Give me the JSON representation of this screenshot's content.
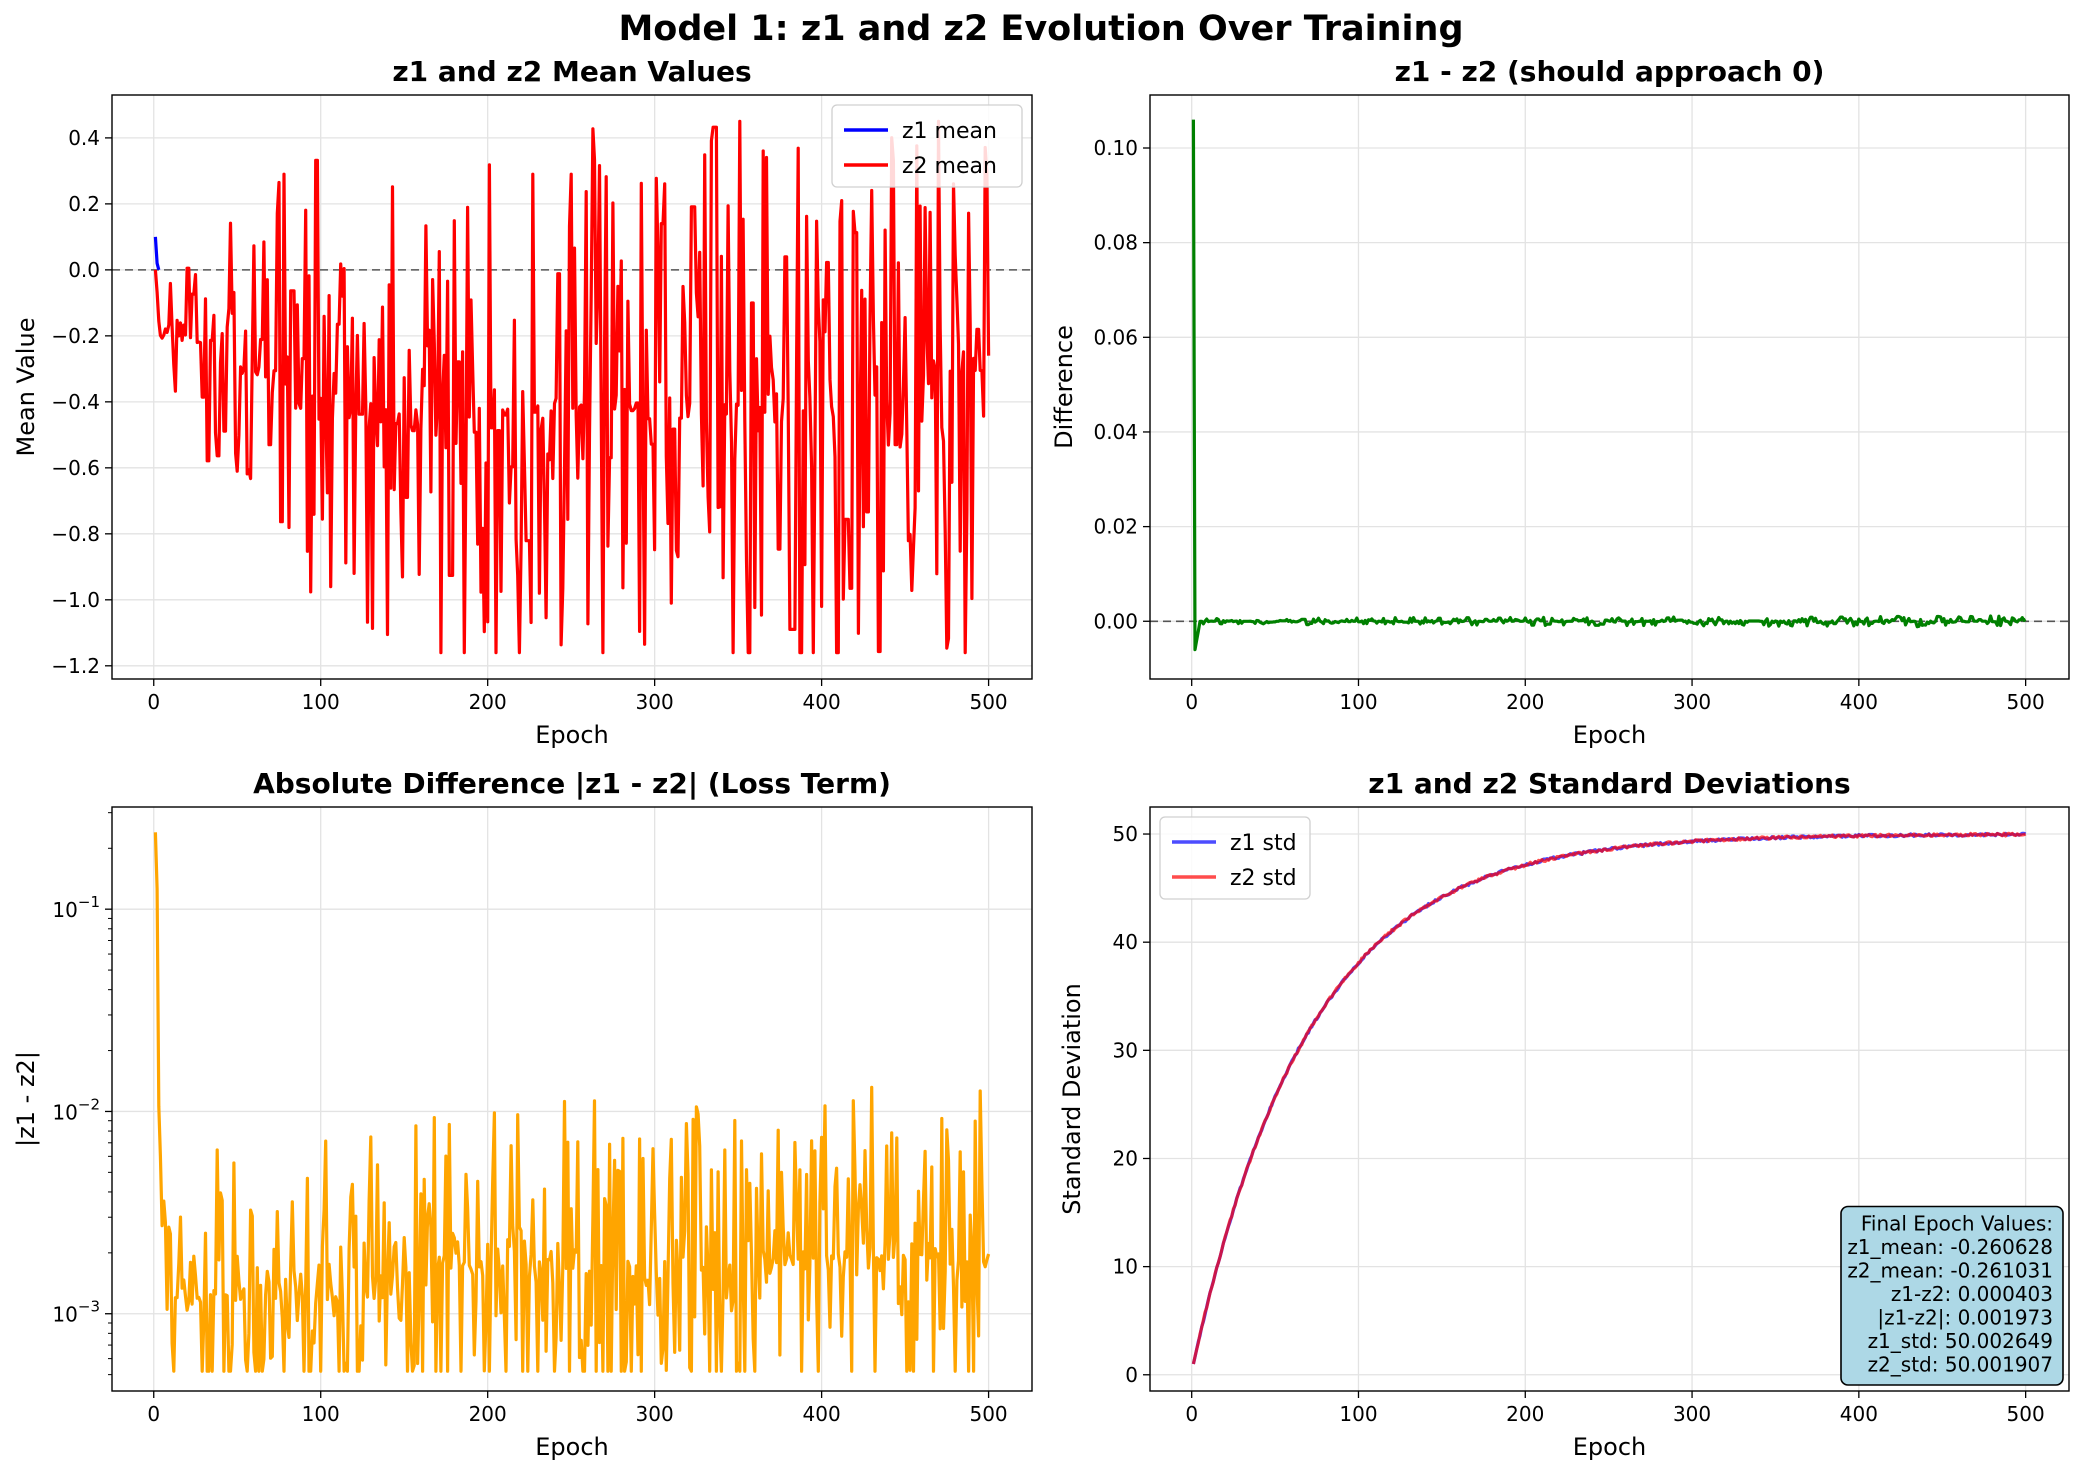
{
  "figure": {
    "suptitle": "Model 1: z1 and z2 Evolution Over Training"
  },
  "chart_data": [
    {
      "id": "mean",
      "type": "line",
      "title": "z1 and z2 Mean Values",
      "xlabel": "Epoch",
      "ylabel": "Mean Value",
      "xlim": [
        -25,
        526
      ],
      "ylim": [
        -1.24,
        0.53
      ],
      "xticks": [
        0,
        100,
        200,
        300,
        400,
        500
      ],
      "yticks": [
        0.4,
        0.2,
        0.0,
        -0.2,
        -0.4,
        -0.6,
        -0.8,
        -1.0,
        -1.2
      ],
      "ytick_labels": [
        "0.4",
        "0.2",
        "0.0",
        "−0.2",
        "−0.4",
        "−0.6",
        "−0.8",
        "−1.0",
        "−1.2"
      ],
      "grid": true,
      "hline": {
        "y": 0,
        "style": "dashed",
        "color": "#555555"
      },
      "legend": {
        "location": "top-right"
      },
      "series": [
        {
          "name": "z1 mean",
          "color": "#0000ff",
          "x": [
            1,
            2,
            3
          ],
          "y": [
            0.1,
            0.02,
            0.0
          ]
        },
        {
          "name": "z2 mean",
          "color": "#ff0000",
          "generator": "noisy",
          "anchors": [
            [
              1,
              0.0
            ],
            [
              4,
              -0.2
            ],
            [
              10,
              -0.2
            ],
            [
              20,
              -0.2
            ],
            [
              50,
              -0.28
            ],
            [
              80,
              -0.36
            ],
            [
              120,
              -0.42
            ],
            [
              200,
              -0.45
            ],
            [
              300,
              -0.4
            ],
            [
              400,
              -0.42
            ],
            [
              500,
              -0.3
            ]
          ],
          "noise": [
            [
              1,
              0.02
            ],
            [
              10,
              0.06
            ],
            [
              30,
              0.12
            ],
            [
              60,
              0.17
            ],
            [
              100,
              0.24
            ],
            [
              200,
              0.27
            ],
            [
              500,
              0.29
            ]
          ],
          "min": -1.16,
          "max": 0.45,
          "end": [
            500,
            -0.26
          ],
          "extremes": [
            [
              78,
              0.29
            ],
            [
              120,
              -0.92
            ],
            [
              227,
              0.29
            ],
            [
              231,
              -0.98
            ],
            [
              250,
              0.29
            ],
            [
              310,
              -1.01
            ],
            [
              351,
              0.45
            ],
            [
              395,
              -1.16
            ],
            [
              400,
              -1.02
            ],
            [
              412,
              0.21
            ]
          ]
        }
      ]
    },
    {
      "id": "diff",
      "type": "line",
      "title": "z1 - z2 (should approach 0)",
      "xlabel": "Epoch",
      "ylabel": "Difference",
      "xlim": [
        -25,
        526
      ],
      "ylim": [
        -0.0122,
        0.1112
      ],
      "xticks": [
        0,
        100,
        200,
        300,
        400,
        500
      ],
      "yticks": [
        0.0,
        0.02,
        0.04,
        0.06,
        0.08,
        0.1
      ],
      "ytick_labels": [
        "0.00",
        "0.02",
        "0.04",
        "0.06",
        "0.08",
        "0.10"
      ],
      "grid": true,
      "hline": {
        "y": 0,
        "style": "dashed",
        "color": "#555555"
      },
      "series": [
        {
          "name": "z1 - z2",
          "color": "#008000",
          "generator": "noisy",
          "anchors": [
            [
              1,
              0.106
            ],
            [
              2,
              -0.006
            ],
            [
              3,
              -0.004
            ],
            [
              5,
              0.0
            ],
            [
              500,
              0.0
            ]
          ],
          "noise": [
            [
              1,
              0.0
            ],
            [
              5,
              0.0002
            ],
            [
              500,
              0.0004
            ]
          ],
          "min": -0.006,
          "max": 0.106,
          "end": [
            500,
            0.000403
          ]
        }
      ]
    },
    {
      "id": "absdiff",
      "type": "line",
      "title": "Absolute Difference |z1 - z2| (Loss Term)",
      "xlabel": "Epoch",
      "ylabel": "|z1 - z2|",
      "yscale": "log",
      "xlim": [
        -25,
        526
      ],
      "ylim": [
        0.000415,
        0.32
      ],
      "xticks": [
        0,
        100,
        200,
        300,
        400,
        500
      ],
      "yticks_major": [
        0.001,
        0.01,
        0.1
      ],
      "ytick_labels": [
        "10^-3",
        "10^-2",
        "10^-1"
      ],
      "grid": true,
      "series": [
        {
          "name": "|z1 - z2|",
          "color": "#ffa500",
          "generator": "noisy_log",
          "anchors": [
            [
              1,
              0.24
            ],
            [
              3,
              0.012
            ],
            [
              5,
              0.004
            ],
            [
              8,
              0.0022
            ],
            [
              12,
              0.0012
            ],
            [
              30,
              0.0012
            ],
            [
              100,
              0.0014
            ],
            [
              200,
              0.0018
            ],
            [
              300,
              0.0016
            ],
            [
              400,
              0.0019
            ],
            [
              500,
              0.0019
            ]
          ],
          "noise": [
            [
              1,
              0.0
            ],
            [
              10,
              0.15
            ],
            [
              30,
              0.28
            ],
            [
              500,
              0.3
            ]
          ],
          "min": 0.00052,
          "max": 0.24,
          "end": [
            500,
            0.001973
          ],
          "extremes": [
            [
              165,
              0.0035
            ],
            [
              240,
              0.00052
            ],
            [
              350,
              0.00057
            ],
            [
              385,
              0.0034
            ]
          ]
        }
      ]
    },
    {
      "id": "std",
      "type": "line",
      "title": "z1 and z2 Standard Deviations",
      "xlabel": "Epoch",
      "ylabel": "Standard Deviation",
      "xlim": [
        -25,
        526
      ],
      "ylim": [
        -1.5,
        52.5
      ],
      "xticks": [
        0,
        100,
        200,
        300,
        400,
        500
      ],
      "yticks": [
        0,
        10,
        20,
        30,
        40,
        50
      ],
      "ytick_labels": [
        "0",
        "10",
        "20",
        "30",
        "40",
        "50"
      ],
      "grid": true,
      "legend": {
        "location": "top-left"
      },
      "series": [
        {
          "name": "z1 std",
          "color": "#0000ff",
          "alpha": 0.7,
          "generator": "saturating",
          "start": 1.0,
          "asymptote": 50.0,
          "tau": 70,
          "end": [
            500,
            50.002649
          ]
        },
        {
          "name": "z2 std",
          "color": "#ff0000",
          "alpha": 0.7,
          "generator": "saturating",
          "start": 1.0,
          "asymptote": 50.0,
          "tau": 70,
          "end": [
            500,
            50.001907
          ]
        }
      ],
      "stats_box": {
        "lines": [
          "Final Epoch Values:",
          "z1_mean: -0.260628",
          "z2_mean: -0.261031",
          "z1-z2: 0.000403",
          "|z1-z2|: 0.001973",
          "z1_std: 50.002649",
          "z2_std: 50.001907"
        ],
        "background": "#add8e6",
        "location": "bottom-right"
      }
    }
  ]
}
